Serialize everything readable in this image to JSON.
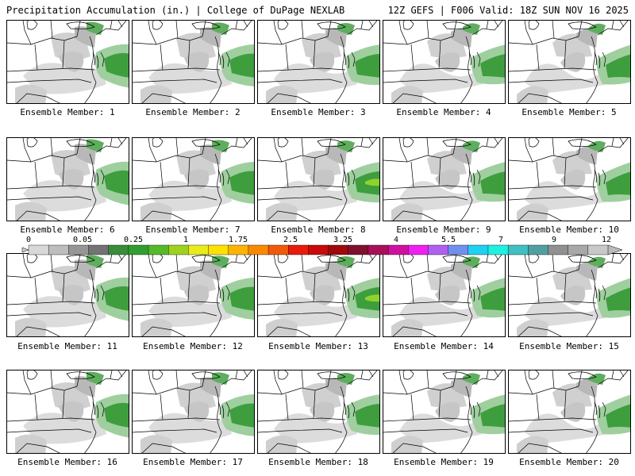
{
  "header": {
    "left": "Precipitation Accumulation (in.) | College of DuPage NEXLAB",
    "right": "12Z GEFS | F006 Valid: 18Z SUN NOV 16 2025"
  },
  "panels": [
    {
      "label": "Ensemble Member: 1"
    },
    {
      "label": "Ensemble Member: 2"
    },
    {
      "label": "Ensemble Member: 3"
    },
    {
      "label": "Ensemble Member: 4"
    },
    {
      "label": "Ensemble Member: 5"
    },
    {
      "label": "Ensemble Member: 6"
    },
    {
      "label": "Ensemble Member: 7"
    },
    {
      "label": "Ensemble Member: 8"
    },
    {
      "label": "Ensemble Member: 9"
    },
    {
      "label": "Ensemble Member: 10"
    },
    {
      "label": "Ensemble Member: 11"
    },
    {
      "label": "Ensemble Member: 12"
    },
    {
      "label": "Ensemble Member: 13"
    },
    {
      "label": "Ensemble Member: 14"
    },
    {
      "label": "Ensemble Member: 15"
    },
    {
      "label": "Ensemble Member: 16"
    },
    {
      "label": "Ensemble Member: 17"
    },
    {
      "label": "Ensemble Member: 18"
    },
    {
      "label": "Ensemble Member: 19"
    },
    {
      "label": "Ensemble Member: 20"
    }
  ],
  "colorbar": {
    "tick_labels": [
      "0",
      "0.05",
      "0.25",
      "1",
      "1.75",
      "2.5",
      "3.25",
      "4",
      "5.5",
      "7",
      "9",
      "12"
    ],
    "colors": [
      "#d8d8d8",
      "#bdbdbd",
      "#969696",
      "#737373",
      "#3a8d3a",
      "#2f9e2f",
      "#56b92a",
      "#9fd21e",
      "#e8ec1a",
      "#fde100",
      "#fcb400",
      "#f98a00",
      "#f05a0a",
      "#e81c0c",
      "#c80a0a",
      "#a00a0a",
      "#801030",
      "#a8105a",
      "#d010a0",
      "#f020f0",
      "#b060f0",
      "#7090f0",
      "#20d0f0",
      "#20f0e0",
      "#40c0c0",
      "#50a0a0",
      "#909090",
      "#a8a8a8",
      "#c8c8c8"
    ]
  }
}
